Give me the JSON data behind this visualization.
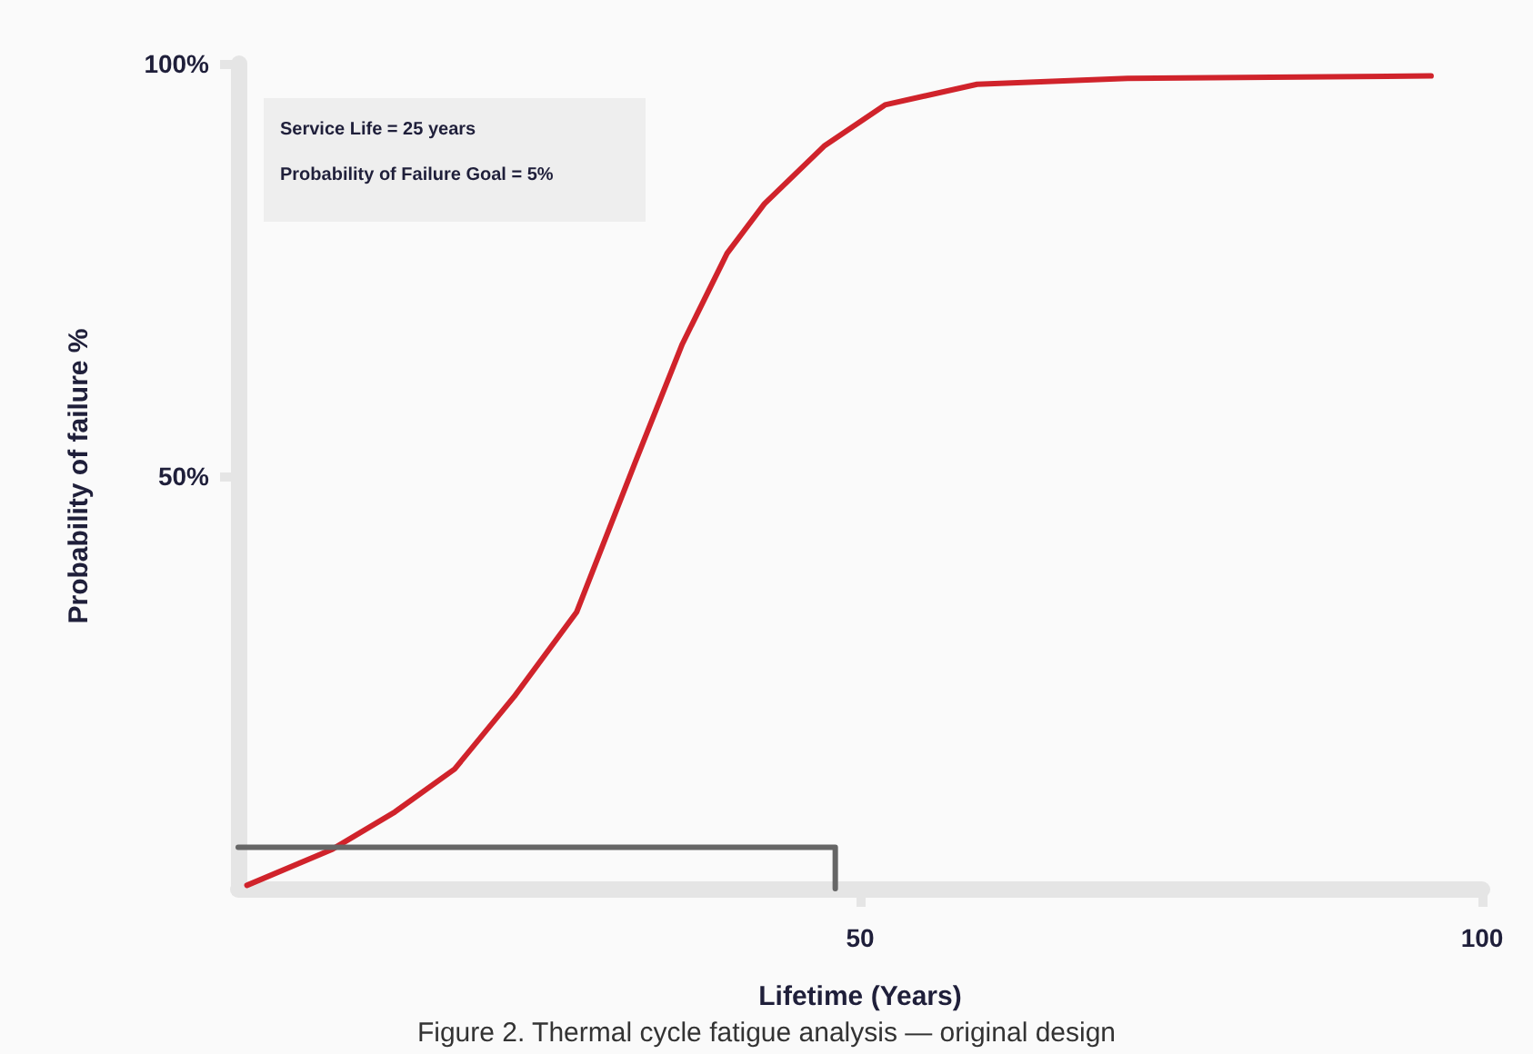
{
  "chart_data": {
    "type": "line",
    "xlabel": "Lifetime (Years)",
    "ylabel": "Probability of failure %",
    "annotations": [
      "Service Life = 25 years",
      "Probability of Failure Goal = 5%",
      "Figure 2. Thermal cycle fatigue analysis — original design"
    ],
    "xlim": [
      0,
      100
    ],
    "xticks": [
      50,
      100
    ],
    "ylim": [
      0,
      100
    ],
    "yticks": [
      {
        "value": 50,
        "label": "50%"
      },
      {
        "value": 100,
        "label": "100%"
      }
    ],
    "grid": false,
    "marker": "none",
    "line_style": "solid",
    "series": [
      {
        "color": "#d0232b",
        "x": [
          0.7,
          7.6,
          12.6,
          17.4,
          22.2,
          27.2,
          32,
          35.7,
          39.3,
          42.3,
          47.1,
          52,
          59.4,
          71.5,
          95.9
        ],
        "values": [
          0.4,
          4.8,
          9.3,
          14.5,
          23.3,
          33.5,
          52,
          66,
          77,
          83,
          90,
          95,
          97.5,
          98.2,
          98.5
        ]
      },
      {
        "color": "#666666",
        "x": [
          0,
          48,
          48
        ],
        "values": [
          5,
          5,
          0
        ]
      }
    ]
  }
}
